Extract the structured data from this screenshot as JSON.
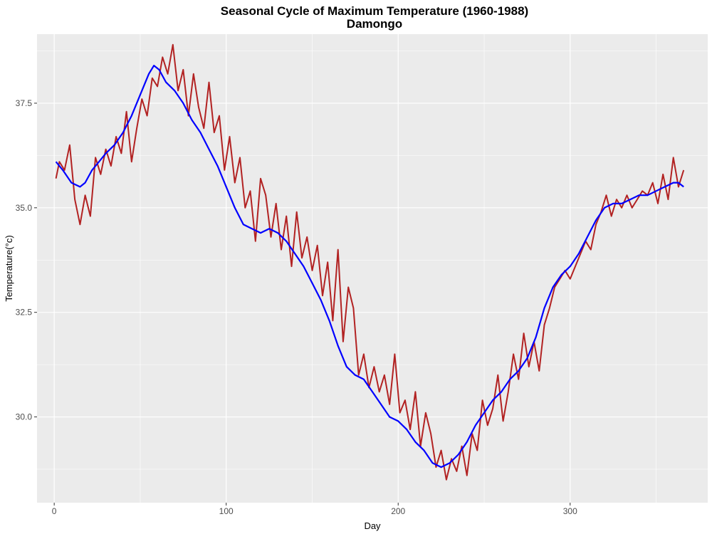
{
  "chart_data": {
    "type": "line",
    "title": "Seasonal Cycle of Maximum Temperature (1960-1988)",
    "subtitle": "Damongo",
    "xlabel": "Day",
    "ylabel": "Temperature(°c)",
    "xlim": [
      -10,
      380
    ],
    "ylim": [
      27.95,
      39.15
    ],
    "x_ticks": [
      0,
      100,
      200,
      300
    ],
    "x_tick_labels": [
      "0",
      "100",
      "200",
      "300"
    ],
    "y_ticks": [
      30.0,
      32.5,
      35.0,
      37.5
    ],
    "y_tick_labels": [
      "30.0",
      "32.5",
      "35.0",
      "37.5"
    ],
    "grid": true,
    "panel_background": "#ebebeb",
    "grid_color": "#ffffff",
    "series": [
      {
        "color": "#b22222",
        "x": [
          1,
          3,
          6,
          9,
          12,
          15,
          18,
          21,
          24,
          27,
          30,
          33,
          36,
          39,
          42,
          45,
          48,
          51,
          54,
          57,
          60,
          63,
          66,
          69,
          72,
          75,
          78,
          81,
          84,
          87,
          90,
          93,
          96,
          99,
          102,
          105,
          108,
          111,
          114,
          117,
          120,
          123,
          126,
          129,
          132,
          135,
          138,
          141,
          144,
          147,
          150,
          153,
          156,
          159,
          162,
          165,
          168,
          171,
          174,
          177,
          180,
          183,
          186,
          189,
          192,
          195,
          198,
          201,
          204,
          207,
          210,
          213,
          216,
          219,
          222,
          225,
          228,
          231,
          234,
          237,
          240,
          243,
          246,
          249,
          252,
          255,
          258,
          261,
          264,
          267,
          270,
          273,
          276,
          279,
          282,
          285,
          288,
          291,
          294,
          297,
          300,
          303,
          306,
          309,
          312,
          315,
          318,
          321,
          324,
          327,
          330,
          333,
          336,
          339,
          342,
          345,
          348,
          351,
          354,
          357,
          360,
          363,
          366
        ],
        "y": [
          35.7,
          36.1,
          35.9,
          36.5,
          35.2,
          34.6,
          35.3,
          34.8,
          36.2,
          35.8,
          36.4,
          36.0,
          36.7,
          36.3,
          37.3,
          36.1,
          36.9,
          37.6,
          37.2,
          38.1,
          37.9,
          38.6,
          38.2,
          38.9,
          37.8,
          38.3,
          37.2,
          38.2,
          37.4,
          36.9,
          38.0,
          36.8,
          37.2,
          35.9,
          36.7,
          35.6,
          36.2,
          35.0,
          35.4,
          34.2,
          35.7,
          35.3,
          34.3,
          35.1,
          34.0,
          34.8,
          33.6,
          34.9,
          33.8,
          34.3,
          33.5,
          34.1,
          32.9,
          33.7,
          32.3,
          34.0,
          31.8,
          33.1,
          32.6,
          31.0,
          31.5,
          30.7,
          31.2,
          30.6,
          31.0,
          30.3,
          31.5,
          30.1,
          30.4,
          29.7,
          30.6,
          29.3,
          30.1,
          29.6,
          28.8,
          29.2,
          28.5,
          29.0,
          28.7,
          29.3,
          28.6,
          29.6,
          29.2,
          30.4,
          29.8,
          30.2,
          31.0,
          29.9,
          30.6,
          31.5,
          30.9,
          32.0,
          31.2,
          31.8,
          31.1,
          32.2,
          32.6,
          33.1,
          33.3,
          33.5,
          33.3,
          33.6,
          33.9,
          34.2,
          34.0,
          34.6,
          34.9,
          35.3,
          34.8,
          35.2,
          35.0,
          35.3,
          35.0,
          35.2,
          35.4,
          35.3,
          35.6,
          35.1,
          35.8,
          35.2,
          36.2,
          35.5,
          35.9
        ]
      },
      {
        "color": "#0000ff",
        "x": [
          1,
          5,
          10,
          15,
          18,
          22,
          26,
          30,
          35,
          40,
          45,
          50,
          55,
          58,
          61,
          65,
          70,
          75,
          80,
          85,
          90,
          95,
          100,
          105,
          110,
          115,
          120,
          125,
          130,
          135,
          140,
          145,
          150,
          155,
          160,
          165,
          170,
          175,
          180,
          185,
          190,
          195,
          200,
          205,
          210,
          215,
          220,
          225,
          230,
          235,
          240,
          245,
          250,
          255,
          260,
          265,
          270,
          275,
          280,
          285,
          290,
          295,
          300,
          305,
          310,
          315,
          320,
          325,
          330,
          335,
          340,
          345,
          350,
          355,
          360,
          363,
          366
        ],
        "y": [
          36.1,
          35.9,
          35.6,
          35.5,
          35.6,
          35.9,
          36.1,
          36.3,
          36.5,
          36.8,
          37.2,
          37.7,
          38.2,
          38.4,
          38.3,
          38.0,
          37.8,
          37.5,
          37.1,
          36.8,
          36.4,
          36.0,
          35.5,
          35.0,
          34.6,
          34.5,
          34.4,
          34.5,
          34.4,
          34.2,
          33.9,
          33.6,
          33.2,
          32.8,
          32.3,
          31.7,
          31.2,
          31.0,
          30.9,
          30.6,
          30.3,
          30.0,
          29.9,
          29.7,
          29.4,
          29.2,
          28.9,
          28.8,
          28.9,
          29.1,
          29.4,
          29.8,
          30.1,
          30.4,
          30.6,
          30.9,
          31.1,
          31.4,
          31.9,
          32.6,
          33.1,
          33.4,
          33.6,
          33.9,
          34.3,
          34.7,
          35.0,
          35.1,
          35.1,
          35.2,
          35.3,
          35.3,
          35.4,
          35.5,
          35.6,
          35.6,
          35.5
        ]
      }
    ]
  }
}
